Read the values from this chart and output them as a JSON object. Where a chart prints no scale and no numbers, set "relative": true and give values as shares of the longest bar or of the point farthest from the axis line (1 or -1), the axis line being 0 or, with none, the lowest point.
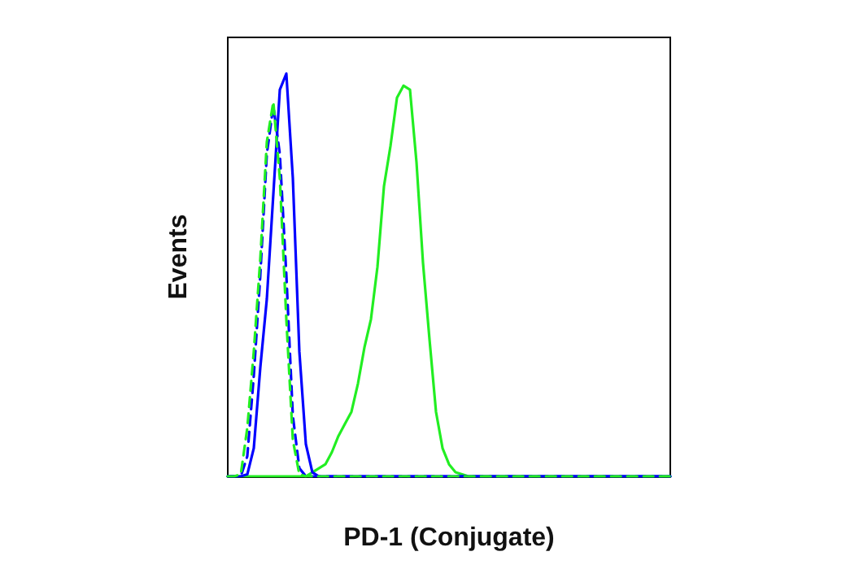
{
  "chart_data": {
    "type": "line",
    "xlabel": "PD-1 (Conjugate)",
    "ylabel": "Events",
    "relative": true,
    "grid": false,
    "categories": [
      null,
      null,
      null,
      null,
      null,
      null,
      null,
      null,
      null,
      null,
      null,
      null,
      null,
      null,
      null,
      null,
      null,
      null,
      null,
      null,
      null,
      null,
      null,
      null,
      null,
      null,
      null,
      null,
      null,
      null,
      null,
      null,
      null,
      null,
      null,
      null,
      null,
      null,
      null,
      null,
      null,
      null,
      null,
      null,
      null,
      null,
      null,
      null,
      null,
      null,
      null,
      null,
      null,
      null,
      null,
      null,
      null,
      null,
      null,
      null,
      null,
      null,
      null,
      null,
      null,
      null,
      null,
      null,
      null
    ],
    "series": [
      {
        "color": "#22ee22",
        "line_style": "solid",
        "values": [
          0,
          0,
          0,
          0,
          0,
          0,
          0,
          0,
          0,
          0,
          0,
          0,
          0,
          0.01,
          0.02,
          0.03,
          0.06,
          0.1,
          0.13,
          0.16,
          0.23,
          0.32,
          0.39,
          0.52,
          0.72,
          0.82,
          0.94,
          0.97,
          0.96,
          0.78,
          0.53,
          0.34,
          0.16,
          0.07,
          0.03,
          0.01,
          0.005,
          0,
          0,
          0,
          0,
          0,
          0,
          0,
          0,
          0,
          0,
          0,
          0,
          0,
          0,
          0,
          0,
          0,
          0,
          0,
          0,
          0,
          0,
          0,
          0,
          0,
          0,
          0,
          0,
          0,
          0,
          0,
          0
        ]
      },
      {
        "color": "#0000ff",
        "line_style": "solid",
        "values": [
          0,
          0,
          0,
          0.005,
          0.07,
          0.27,
          0.44,
          0.7,
          0.96,
          1,
          0.74,
          0.31,
          0.08,
          0.01,
          0,
          0,
          0,
          0,
          0,
          0,
          0,
          0,
          0,
          0,
          0,
          0,
          0,
          0,
          0,
          0,
          0,
          0,
          0,
          0,
          0,
          0,
          0,
          0,
          0,
          0,
          0,
          0,
          0,
          0,
          0,
          0,
          0,
          0,
          0,
          0,
          0,
          0,
          0,
          0,
          0,
          0,
          0,
          0,
          0,
          0,
          0,
          0,
          0,
          0,
          0,
          0,
          0,
          0,
          0
        ]
      },
      {
        "color": "#0000ff",
        "line_style": "dashed",
        "values": [
          0,
          0,
          0,
          0.05,
          0.25,
          0.5,
          0.8,
          0.92,
          0.8,
          0.5,
          0.15,
          0.02,
          0,
          0,
          0,
          0,
          0,
          0,
          0,
          0,
          0,
          0,
          0,
          0,
          0,
          0,
          0,
          0,
          0,
          0,
          0,
          0,
          0,
          0,
          0,
          0,
          0,
          0,
          0,
          0,
          0,
          0,
          0,
          0,
          0,
          0,
          0,
          0,
          0,
          0,
          0,
          0,
          0,
          0,
          0,
          0,
          0,
          0,
          0,
          0,
          0,
          0,
          0,
          0,
          0,
          0,
          0,
          0,
          0
        ]
      },
      {
        "color": "#22ee22",
        "line_style": "dashed",
        "values": [
          0,
          0,
          0.005,
          0.12,
          0.31,
          0.54,
          0.83,
          0.93,
          0.74,
          0.39,
          0.09,
          0.005,
          0,
          0,
          0,
          0,
          0,
          0,
          0,
          0,
          0,
          0,
          0,
          0,
          0,
          0,
          0,
          0,
          0,
          0,
          0,
          0,
          0,
          0,
          0,
          0,
          0,
          0,
          0,
          0,
          0,
          0,
          0,
          0,
          0,
          0,
          0,
          0,
          0,
          0,
          0,
          0,
          0,
          0,
          0,
          0,
          0,
          0,
          0,
          0,
          0,
          0,
          0,
          0,
          0,
          0,
          0,
          0,
          0
        ]
      }
    ]
  }
}
